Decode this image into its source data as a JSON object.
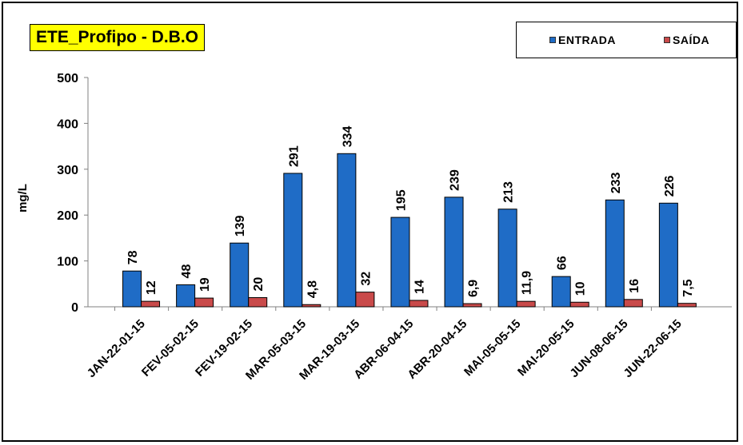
{
  "chart_data": {
    "type": "bar",
    "title": "ETE_Profipo - D.B.O",
    "xlabel": "",
    "ylabel": "mg/L",
    "ylim": [
      0,
      500
    ],
    "yticks": [
      "0",
      "100",
      "200",
      "300",
      "400",
      "500"
    ],
    "grid": false,
    "legend_position": "top-right",
    "categories": [
      "JAN-22-01-15",
      "FEV-05-02-15",
      "FEV-19-02-15",
      "MAR-05-03-15",
      "MAR-19-03-15",
      "ABR-06-04-15",
      "ABR-20-04-15",
      "MAI-05-05-15",
      "MAI-20-05-15",
      "JUN-08-06-15",
      "JUN-22-06-15"
    ],
    "series": [
      {
        "name": "ENTRADA",
        "color": "#1f6cc6",
        "values": [
          78,
          48,
          139,
          291,
          334,
          195,
          239,
          213,
          66,
          233,
          226
        ],
        "labels": [
          "78",
          "48",
          "139",
          "291",
          "334",
          "195",
          "239",
          "213",
          "66",
          "233",
          "226"
        ]
      },
      {
        "name": "SAÍDA",
        "color": "#c94a4a",
        "values": [
          12,
          19,
          20,
          4.8,
          32,
          14,
          6.9,
          11.9,
          10,
          16,
          7.5
        ],
        "labels": [
          "12",
          "19",
          "20",
          "4,8",
          "32",
          "14",
          "6,9",
          "11,9",
          "10",
          "16",
          "7,5"
        ]
      }
    ]
  }
}
